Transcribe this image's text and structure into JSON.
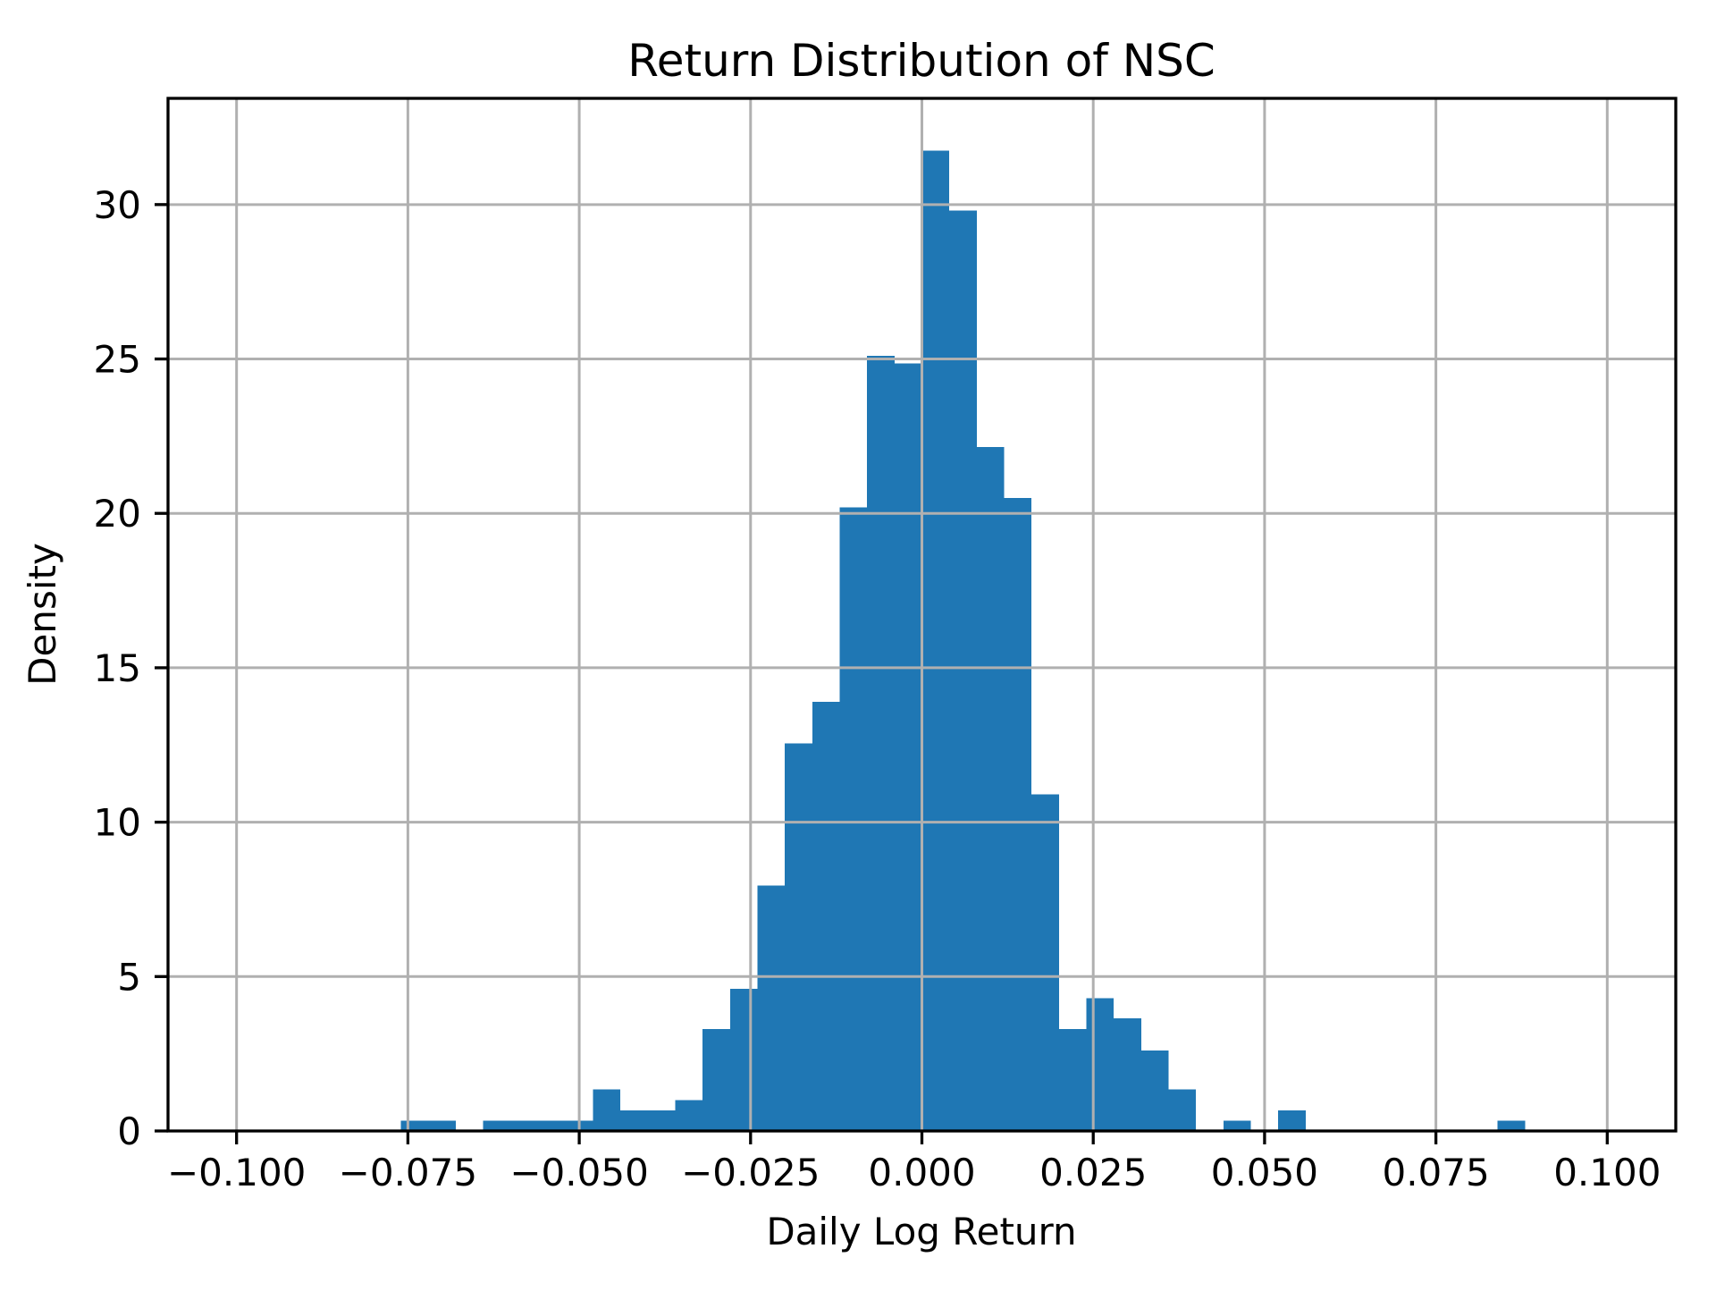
{
  "figure": {
    "background": "#ffffff"
  },
  "chart_data": {
    "type": "bar",
    "subtype": "histogram",
    "title": "Return Distribution of NSC",
    "xlabel": "Daily Log Return",
    "ylabel": "Density",
    "grid": true,
    "legend": null,
    "bar_color": "#1f77b4",
    "grid_color": "#b0b0b0",
    "axis_color": "#000000",
    "xlim": [
      -0.11,
      0.11
    ],
    "ylim": [
      0,
      33.44
    ],
    "x_ticks": [
      -0.1,
      -0.075,
      -0.05,
      -0.025,
      0.0,
      0.025,
      0.05,
      0.075,
      0.1
    ],
    "x_tick_labels": [
      "−0.100",
      "−0.075",
      "−0.050",
      "−0.025",
      "0.000",
      "0.025",
      "0.050",
      "0.075",
      "0.100"
    ],
    "y_ticks": [
      0,
      5,
      10,
      15,
      20,
      25,
      30
    ],
    "y_tick_labels": [
      "0",
      "5",
      "10",
      "15",
      "20",
      "25",
      "30"
    ],
    "histogram": {
      "bin_start": -0.076,
      "bin_width": 0.004,
      "densities": [
        0.33,
        0.33,
        0,
        0.33,
        0.33,
        0.33,
        0.33,
        1.35,
        0.67,
        0.67,
        1.0,
        3.3,
        4.6,
        7.95,
        12.55,
        13.9,
        20.2,
        25.1,
        24.85,
        31.75,
        29.8,
        22.15,
        20.5,
        10.9,
        3.3,
        4.3,
        3.65,
        2.6,
        1.35,
        0,
        0.33,
        0,
        0.67,
        0,
        0,
        0,
        0,
        0,
        0,
        0,
        0.33
      ]
    }
  }
}
